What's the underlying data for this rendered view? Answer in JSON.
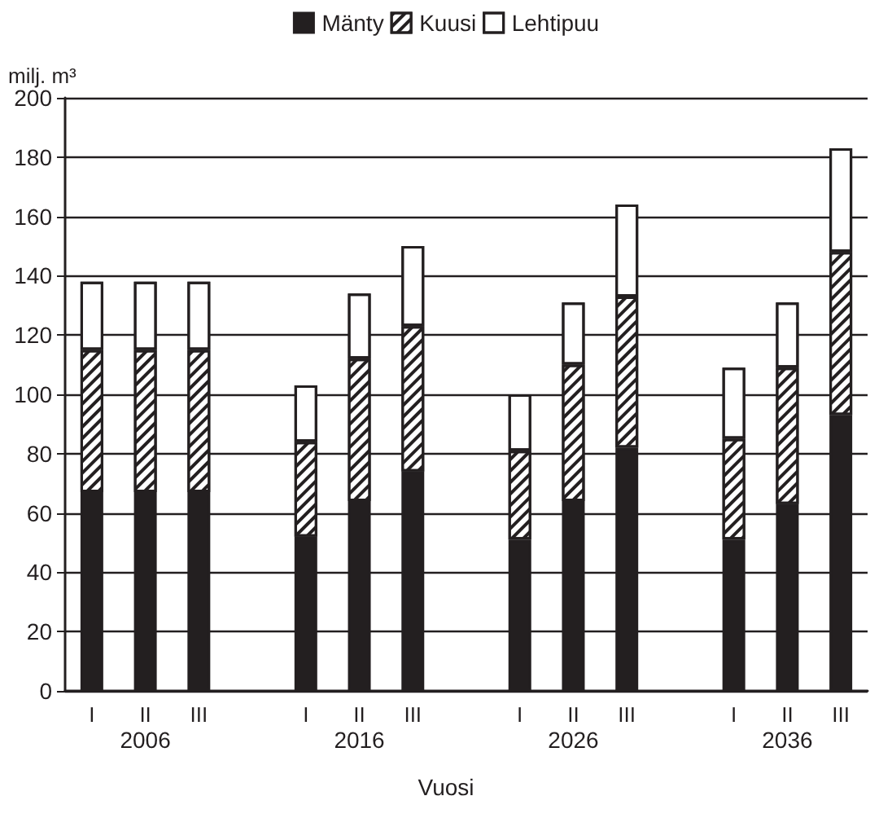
{
  "chart_data": {
    "type": "bar",
    "stacked": true,
    "ylabel": "milj. m³",
    "xlabel": "Vuosi",
    "categories": [
      "I",
      "II",
      "III",
      null,
      "I",
      "II",
      "III",
      null,
      "I",
      "II",
      "III",
      null,
      "I",
      "II",
      "III"
    ],
    "series": [
      {
        "name": "Mänty",
        "color": "#231f20",
        "values": [
          67,
          67,
          67,
          null,
          52,
          64,
          74,
          null,
          51,
          64,
          82,
          null,
          51,
          63,
          93
        ]
      },
      {
        "name": "Kuusi",
        "color": "#ffffff",
        "values": [
          48,
          48,
          48,
          null,
          32,
          48,
          49,
          null,
          30,
          46,
          51,
          null,
          34,
          46,
          55
        ]
      },
      {
        "name": "Lehtipuu",
        "color": "#ffffff",
        "values": [
          23,
          23,
          23,
          null,
          19,
          22,
          27,
          null,
          19,
          21,
          31,
          null,
          24,
          22,
          35
        ]
      }
    ],
    "annotations": [
      "2006",
      "2016",
      "2026",
      "2036"
    ],
    "ylim": [
      0,
      200
    ],
    "yticks": [
      0,
      20,
      40,
      60,
      80,
      100,
      120,
      140,
      160,
      180,
      200
    ],
    "grid": "y",
    "legend": "top"
  }
}
